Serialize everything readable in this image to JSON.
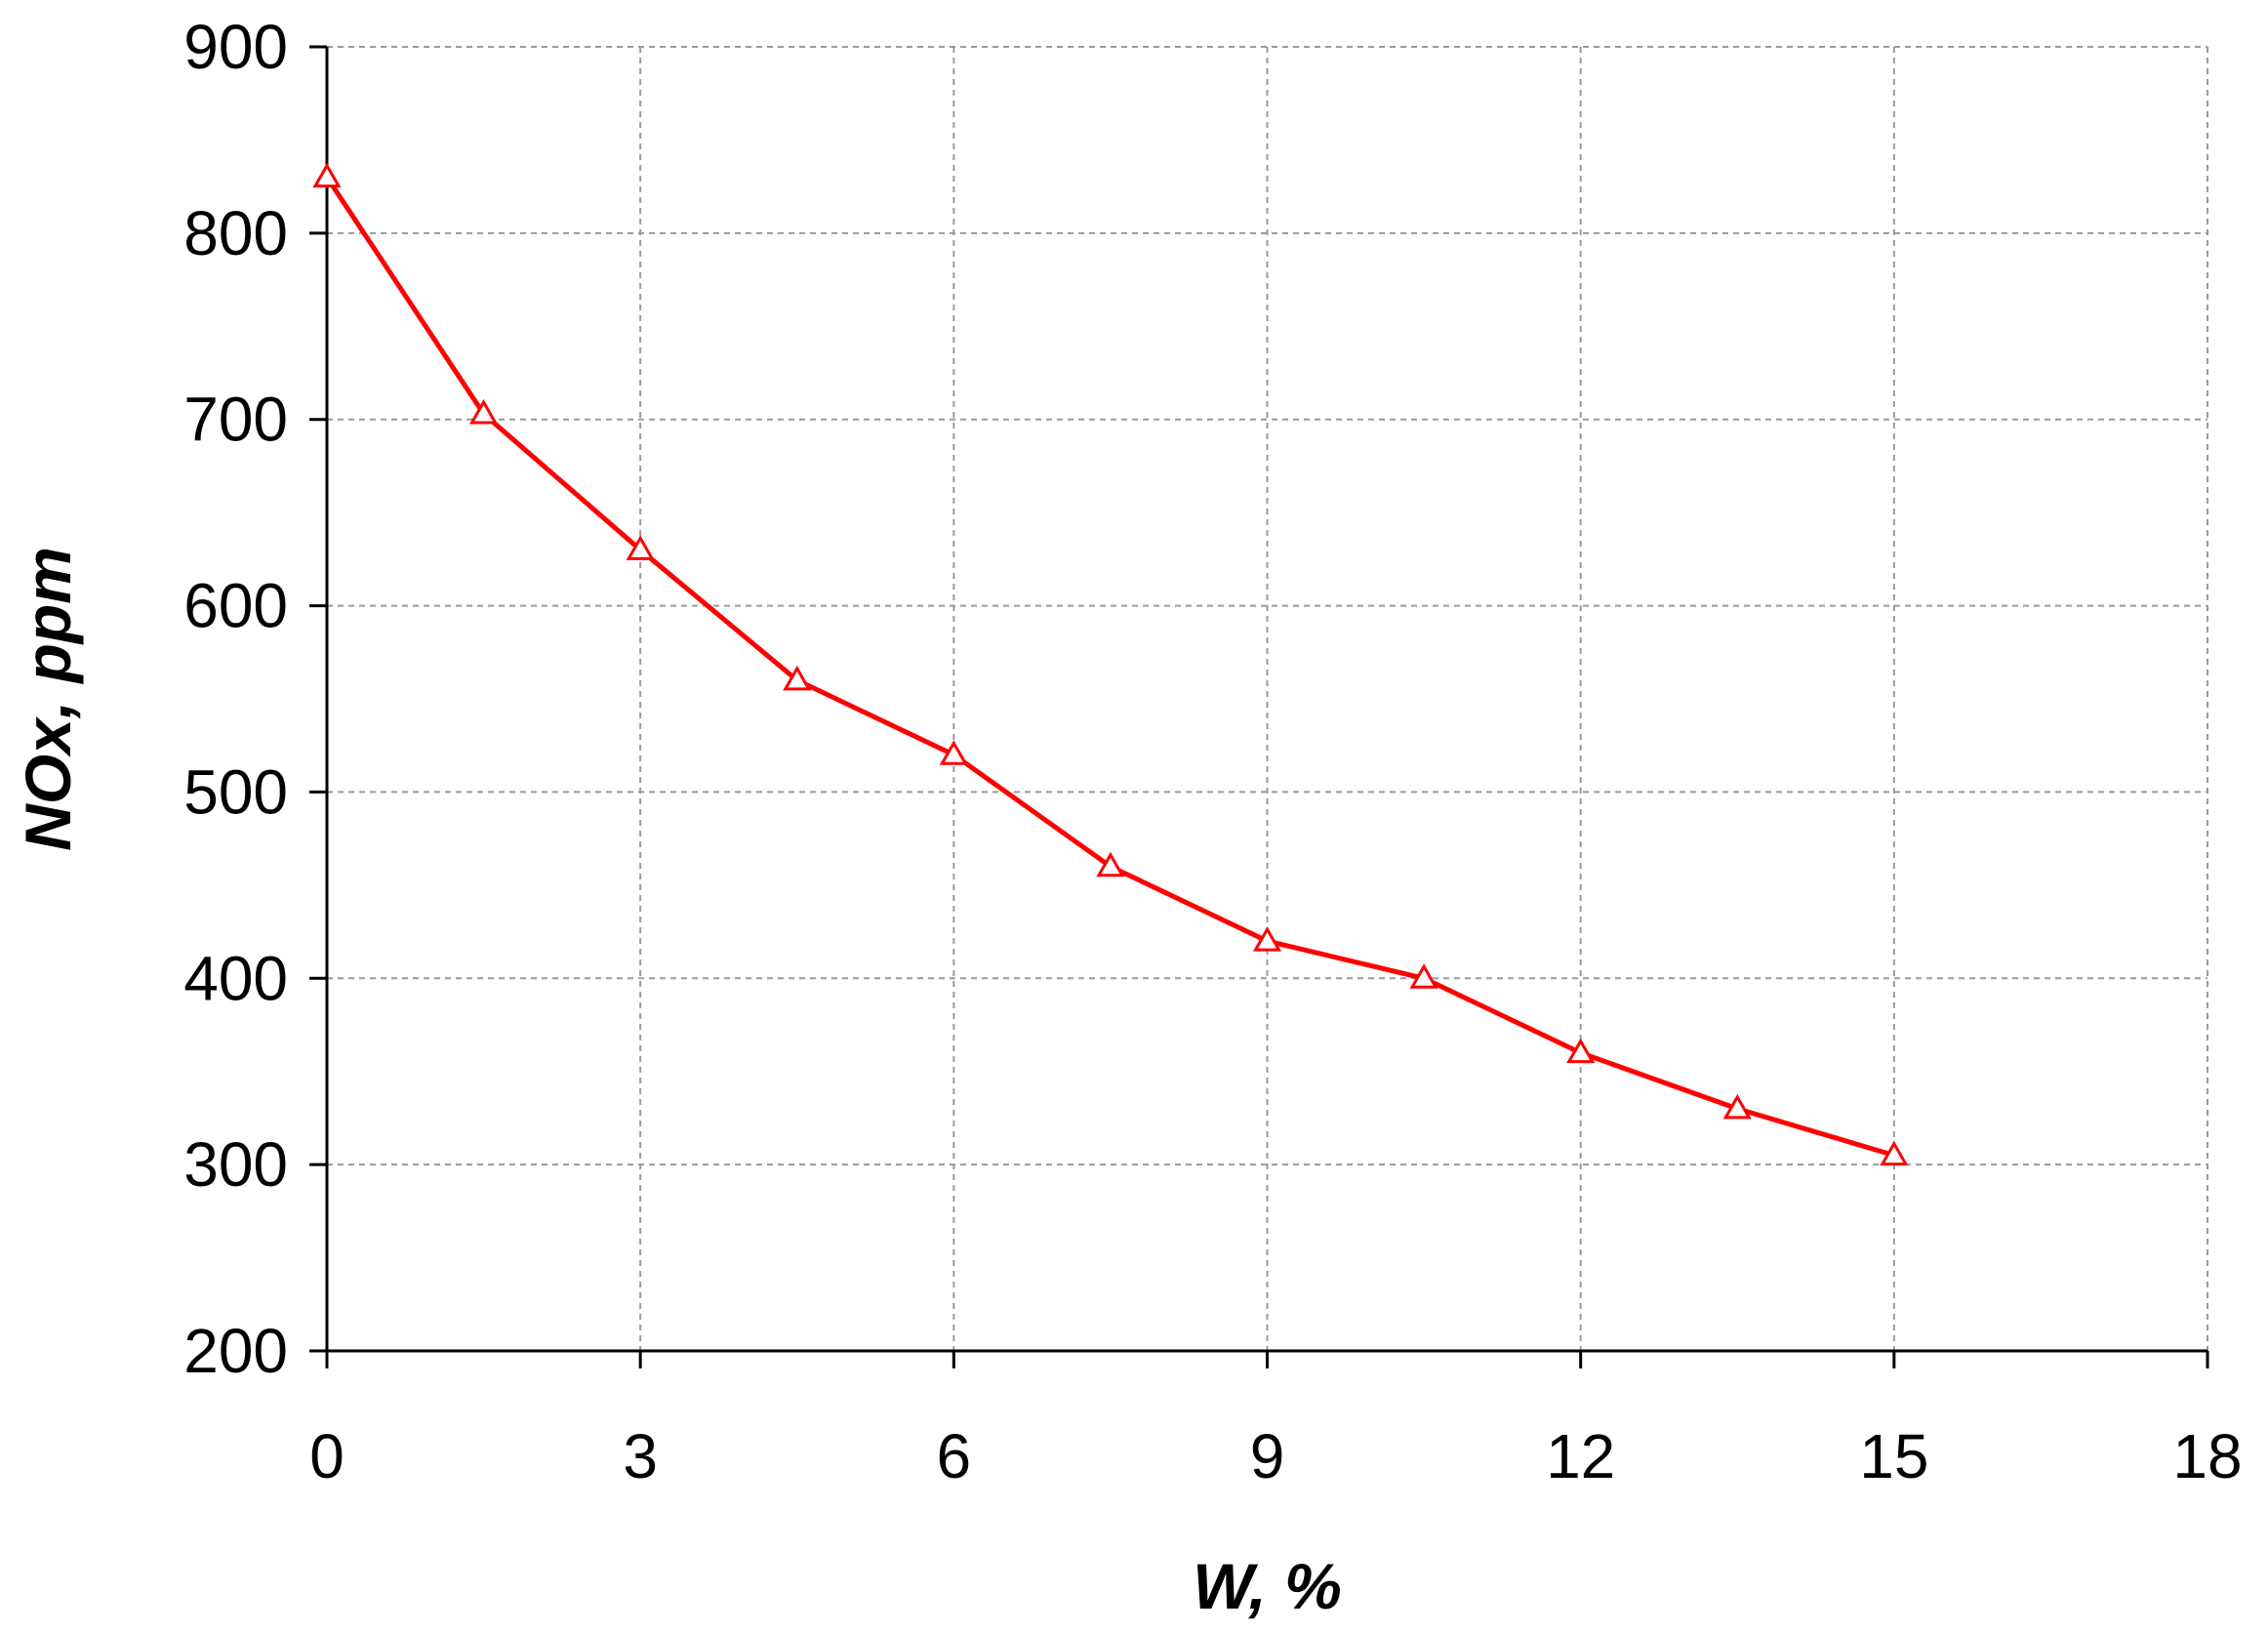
{
  "chart_data": {
    "type": "line",
    "title": "",
    "xlabel": "W, %",
    "ylabel": "NOx, ppm",
    "xlim": [
      0,
      18
    ],
    "ylim": [
      200,
      900
    ],
    "x_ticks": [
      0,
      3,
      6,
      9,
      12,
      15,
      18
    ],
    "y_ticks": [
      200,
      300,
      400,
      500,
      600,
      700,
      800,
      900
    ],
    "x_tick_labels": [
      "0",
      "3",
      "6",
      "9",
      "12",
      "15",
      "18"
    ],
    "y_tick_labels": [
      "200",
      "300",
      "400",
      "500",
      "600",
      "700",
      "800",
      "900"
    ],
    "grid": true,
    "legend": "none",
    "series": [
      {
        "color": "#ff0000",
        "marker": "triangle-open",
        "x": [
          0,
          1.5,
          3,
          4.5,
          6,
          7.5,
          9,
          10.5,
          12,
          13.5,
          15
        ],
        "y": [
          830,
          703,
          630,
          560,
          520,
          460,
          420,
          400,
          360,
          330,
          305
        ]
      }
    ]
  }
}
